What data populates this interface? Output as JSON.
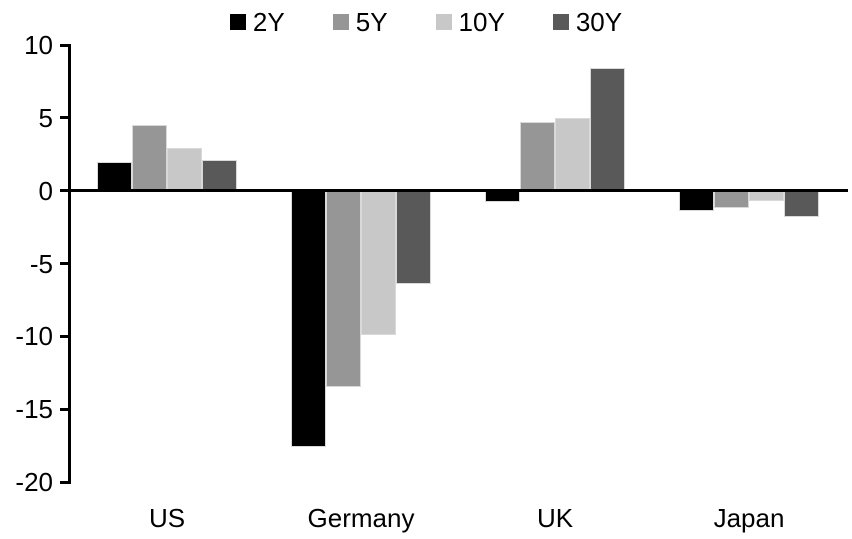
{
  "chart_data": {
    "type": "bar",
    "title": "",
    "categories": [
      "US",
      "Germany",
      "UK",
      "Japan"
    ],
    "series": [
      {
        "name": "2Y",
        "color": "#000000",
        "values": [
          2.0,
          -17.6,
          -0.8,
          -1.4
        ]
      },
      {
        "name": "5Y",
        "color": "#969696",
        "values": [
          4.5,
          -13.5,
          4.7,
          -1.2
        ]
      },
      {
        "name": "10Y",
        "color": "#C8C8C8",
        "values": [
          2.9,
          -9.9,
          5.0,
          -0.7
        ]
      },
      {
        "name": "30Y",
        "color": "#595959",
        "values": [
          2.1,
          -6.4,
          8.4,
          -1.8
        ]
      }
    ],
    "xlabel": "",
    "ylabel": "",
    "ylim": [
      -20,
      10
    ],
    "yticks": [
      10,
      5,
      0,
      -5,
      -10,
      -15,
      -20
    ],
    "ytick_labels": [
      "10",
      "5",
      "0",
      "-5",
      "-10",
      "-15",
      "-20"
    ],
    "grid": false,
    "legend_position": "top",
    "axis_color": "#000000",
    "bar_outline_color": "#D9D9D9",
    "background_color": "#FFFFFF"
  }
}
